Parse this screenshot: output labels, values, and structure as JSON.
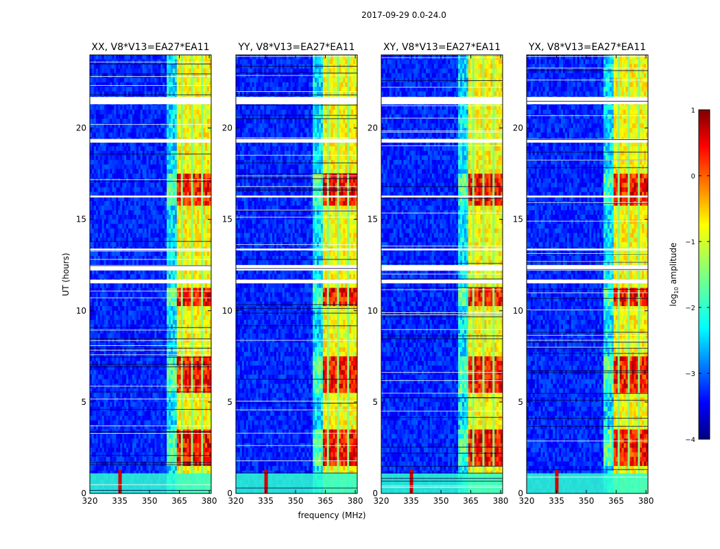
{
  "chart_data": {
    "type": "heatmap",
    "suptitle": "2017-09-29 0.0-24.0",
    "xlabel": "frequency (MHz)",
    "ylabel": "UT (hours)",
    "xlim": [
      320,
      381
    ],
    "ylim": [
      0,
      24
    ],
    "xticks": [
      320,
      335,
      350,
      365,
      380
    ],
    "yticks": [
      0,
      5,
      10,
      15,
      20
    ],
    "panels": [
      {
        "title": "XX, V8*V13=EA27*EA11",
        "pol": "XX"
      },
      {
        "title": "YY, V8*V13=EA27*EA11",
        "pol": "YY"
      },
      {
        "title": "XY, V8*V13=EA27*EA11",
        "pol": "XY"
      },
      {
        "title": "YX, V8*V13=EA27*EA11",
        "pol": "YX"
      }
    ],
    "colorbar": {
      "label_main": "log",
      "label_sub": "10",
      "label_rest": " amplitude",
      "range": [
        -4,
        1
      ],
      "ticks": [
        "1",
        "0",
        "−1",
        "−2",
        "−3",
        "−4"
      ],
      "tick_values": [
        1,
        0,
        -1,
        -2,
        -3,
        -4
      ],
      "colormap": "jet"
    },
    "bright_band_mhz": [
      363,
      381
    ],
    "strong_rfi_hours": [
      [
        1.5,
        3.5
      ],
      [
        5.5,
        7.5
      ],
      [
        10.2,
        11.3
      ],
      [
        15.8,
        17.5
      ]
    ],
    "flagged_hours": [
      [
        21.3,
        21.7
      ],
      [
        12.2,
        12.5
      ],
      [
        11.5,
        11.7
      ],
      [
        13.3,
        13.4
      ],
      [
        19.2,
        19.4
      ],
      [
        16.2,
        16.3
      ]
    ]
  }
}
